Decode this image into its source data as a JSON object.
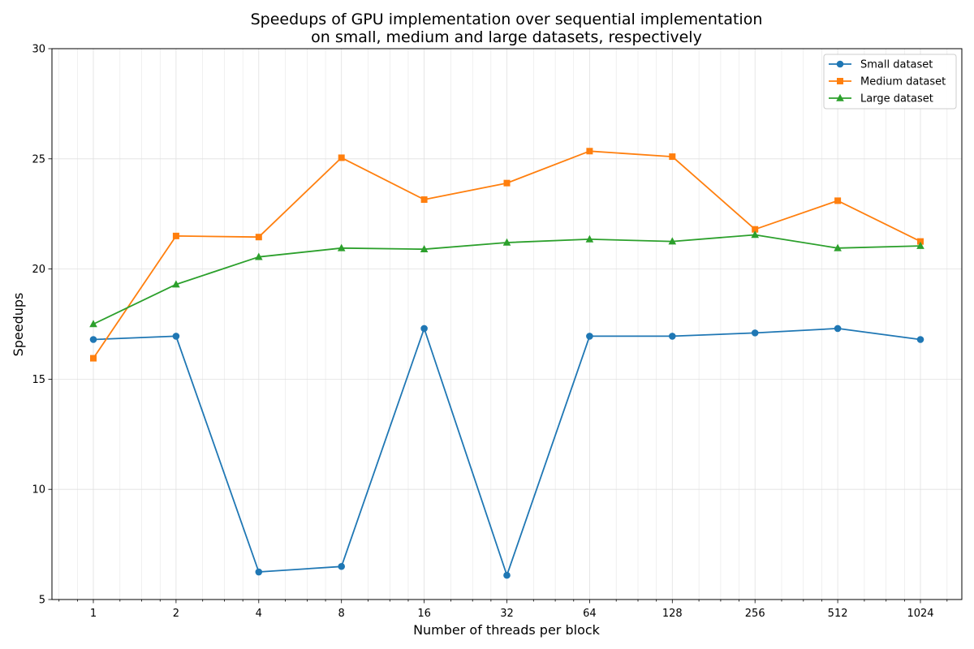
{
  "chart_data": {
    "type": "line",
    "title": "Speedups of GPU implementation over sequential implementation",
    "subtitle": "on small, medium and large datasets, respectively",
    "xlabel": "Number of threads per block",
    "ylabel": "Speedups",
    "x_scale": "log2",
    "x": [
      1,
      2,
      4,
      8,
      16,
      32,
      64,
      128,
      256,
      512,
      1024
    ],
    "x_tick_labels": [
      "1",
      "2",
      "4",
      "8",
      "16",
      "32",
      "64",
      "128",
      "256",
      "512",
      "1024"
    ],
    "ylim": [
      5,
      30
    ],
    "y_ticks": [
      5,
      10,
      15,
      20,
      25,
      30
    ],
    "grid": true,
    "legend_position": "top-right",
    "series": [
      {
        "name": "Small dataset",
        "color": "#1f77b4",
        "marker": "circle",
        "values": [
          16.8,
          16.95,
          6.25,
          6.5,
          17.3,
          6.1,
          16.95,
          16.95,
          17.1,
          17.3,
          16.8
        ]
      },
      {
        "name": "Medium dataset",
        "color": "#ff7f0e",
        "marker": "square",
        "values": [
          15.95,
          21.5,
          21.45,
          25.05,
          23.15,
          23.9,
          25.35,
          25.1,
          21.8,
          23.1,
          21.25
        ]
      },
      {
        "name": "Large dataset",
        "color": "#2ca02c",
        "marker": "triangle",
        "values": [
          17.5,
          19.3,
          20.55,
          20.95,
          20.9,
          21.2,
          21.35,
          21.25,
          21.55,
          20.95,
          21.05
        ]
      }
    ]
  }
}
